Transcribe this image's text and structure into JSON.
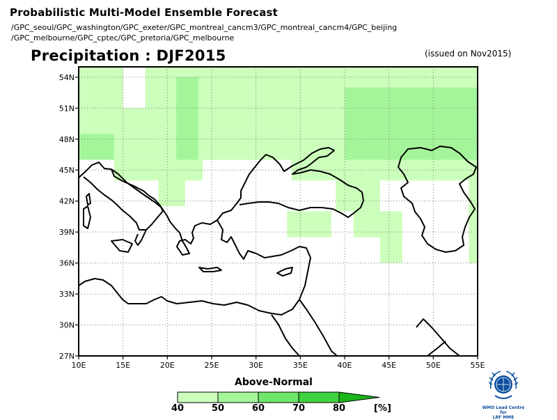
{
  "header": {
    "title": "Probabilistic Multi-Model Ensemble Forecast",
    "models_line1": "/GPC_seoul/GPC_washington/GPC_exeter/GPC_montreal_cancm3/GPC_montreal_cancm4/GPC_beijing",
    "models_line2": "/GPC_melbourne/GPC_cptec/GPC_pretoria/GPC_melbourne"
  },
  "map_title": "Precipitation : DJF2015",
  "issued": "(issued on Nov2015)",
  "map": {
    "lon_range": [
      10,
      55
    ],
    "lat_range": [
      27,
      55
    ],
    "x_ticks": [
      "10E",
      "15E",
      "20E",
      "25E",
      "30E",
      "35E",
      "40E",
      "45E",
      "50E",
      "55E"
    ],
    "y_ticks": [
      "27N",
      "30N",
      "33N",
      "36N",
      "39N",
      "42N",
      "45N",
      "48N",
      "51N",
      "54N"
    ],
    "grid": true,
    "colors": {
      "40-50": "#ccffbb",
      "50-60": "#a4f59a",
      "60-70": "#6fe66a",
      "70-80": "#3fd23f",
      "80+": "#1bb51b"
    },
    "regions": [
      {
        "category": "40-50",
        "lon": [
          10,
          15
        ],
        "lat": [
          51,
          55
        ]
      },
      {
        "category": "40-50",
        "lon": [
          10,
          17.5
        ],
        "lat": [
          48.5,
          51
        ]
      },
      {
        "category": "40-50",
        "lon": [
          17.5,
          55
        ],
        "lat": [
          48.5,
          55
        ]
      },
      {
        "category": "50-60",
        "lon": [
          10,
          14
        ],
        "lat": [
          46,
          48.5
        ]
      },
      {
        "category": "40-50",
        "lon": [
          14,
          25
        ],
        "lat": [
          46,
          48.5
        ]
      },
      {
        "category": "40-50",
        "lon": [
          14,
          24
        ],
        "lat": [
          44,
          46
        ]
      },
      {
        "category": "40-50",
        "lon": [
          19,
          22
        ],
        "lat": [
          41.5,
          44
        ]
      },
      {
        "category": "40-50",
        "lon": [
          25,
          39
        ],
        "lat": [
          46,
          48.5
        ]
      },
      {
        "category": "40-50",
        "lon": [
          34,
          55
        ],
        "lat": [
          44,
          48.5
        ]
      },
      {
        "category": "40-50",
        "lon": [
          39,
          44
        ],
        "lat": [
          41,
          44
        ]
      },
      {
        "category": "40-50",
        "lon": [
          41,
          44
        ],
        "lat": [
          38.5,
          41
        ]
      },
      {
        "category": "40-50",
        "lon": [
          44,
          46.5
        ],
        "lat": [
          36,
          41
        ]
      },
      {
        "category": "40-50",
        "lon": [
          33.5,
          38.5
        ],
        "lat": [
          38.5,
          41
        ]
      },
      {
        "category": "40-50",
        "lon": [
          54,
          55
        ],
        "lat": [
          36,
          44
        ]
      },
      {
        "category": "50-60",
        "lon": [
          21,
          23.5
        ],
        "lat": [
          46,
          54
        ]
      },
      {
        "category": "50-60",
        "lon": [
          40,
          55
        ],
        "lat": [
          46,
          53
        ]
      }
    ]
  },
  "legend": {
    "title": "Above-Normal",
    "ticks": [
      "40",
      "50",
      "60",
      "70",
      "80"
    ],
    "unit": "[%]"
  },
  "logo": {
    "line1": "WMO Lead Centre for",
    "line2": "LRF MME"
  }
}
